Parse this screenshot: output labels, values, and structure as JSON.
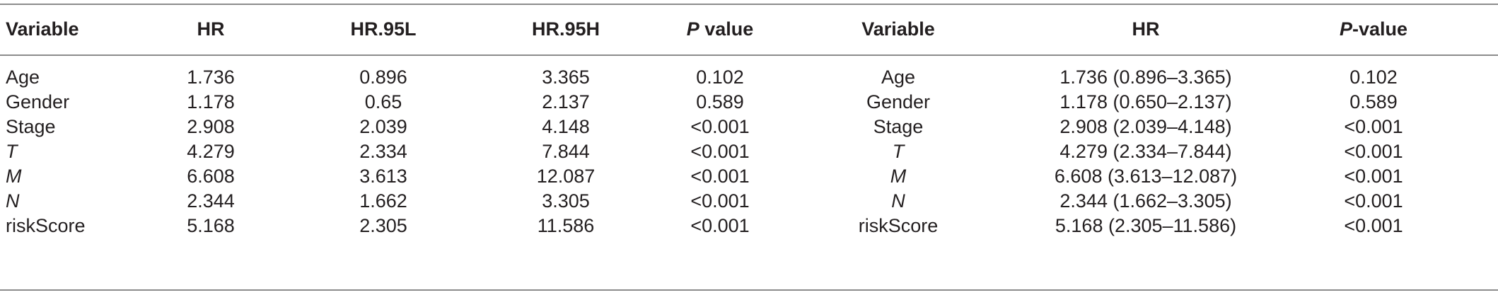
{
  "table": {
    "headers": {
      "variable_left": "Variable",
      "hr_left": "HR",
      "hr95l": "HR.95L",
      "hr95h": "HR.95H",
      "p_left_italic": "P",
      "p_left_rest": " value",
      "variable_right": "Variable",
      "hr_right": "HR",
      "p_right_italic": "P",
      "p_right_rest": "-value"
    },
    "rows": [
      {
        "variable": "Age",
        "hr": "1.736",
        "hr95l": "0.896",
        "hr95h": "3.365",
        "p": "0.102",
        "variable_right": "Age",
        "hr_ci": "1.736 (0.896–3.365)",
        "p_right": "0.102",
        "italic": false
      },
      {
        "variable": "Gender",
        "hr": "1.178",
        "hr95l": "0.65",
        "hr95h": "2.137",
        "p": "0.589",
        "variable_right": "Gender",
        "hr_ci": "1.178 (0.650–2.137)",
        "p_right": "0.589",
        "italic": false
      },
      {
        "variable": "Stage",
        "hr": "2.908",
        "hr95l": "2.039",
        "hr95h": "4.148",
        "p": "<0.001",
        "variable_right": "Stage",
        "hr_ci": "2.908 (2.039–4.148)",
        "p_right": "<0.001",
        "italic": false
      },
      {
        "variable": "T",
        "hr": "4.279",
        "hr95l": "2.334",
        "hr95h": "7.844",
        "p": "<0.001",
        "variable_right": "T",
        "hr_ci": "4.279 (2.334–7.844)",
        "p_right": "<0.001",
        "italic": true
      },
      {
        "variable": "M",
        "hr": "6.608",
        "hr95l": "3.613",
        "hr95h": "12.087",
        "p": "<0.001",
        "variable_right": "M",
        "hr_ci": "6.608 (3.613–12.087)",
        "p_right": "<0.001",
        "italic": true
      },
      {
        "variable": "N",
        "hr": "2.344",
        "hr95l": "1.662",
        "hr95h": "3.305",
        "p": "<0.001",
        "variable_right": "N",
        "hr_ci": "2.344 (1.662–3.305)",
        "p_right": "<0.001",
        "italic": true
      },
      {
        "variable": "riskScore",
        "hr": "5.168",
        "hr95l": "2.305",
        "hr95h": "11.586",
        "p": "<0.001",
        "variable_right": "riskScore",
        "hr_ci": "5.168 (2.305–11.586)",
        "p_right": "<0.001",
        "italic": false
      }
    ]
  }
}
